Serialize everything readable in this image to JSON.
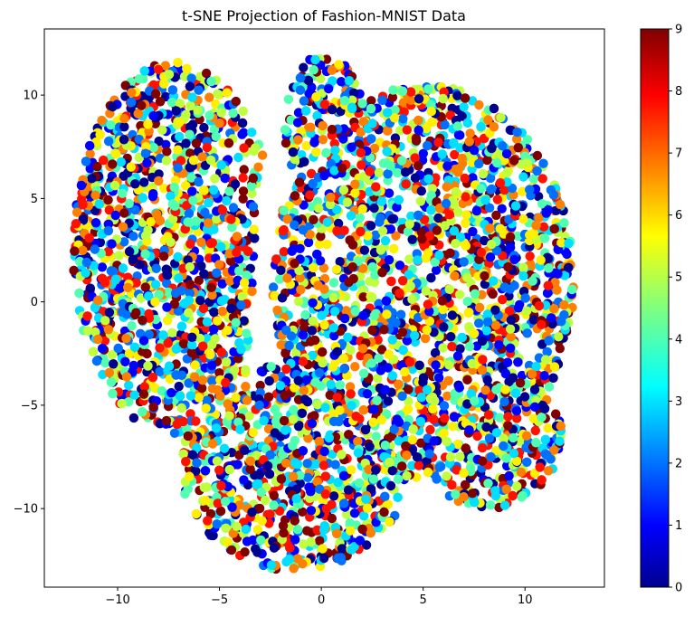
{
  "chart_data": {
    "type": "scatter",
    "title": "t-SNE Projection of Fashion-MNIST Data",
    "xlabel": "",
    "ylabel": "",
    "xlim": [
      -13.6,
      13.9
    ],
    "ylim": [
      -13.8,
      13.2
    ],
    "xticks": [
      -10,
      -5,
      0,
      5,
      10
    ],
    "yticks": [
      -10,
      -5,
      0,
      5,
      10
    ],
    "xtick_labels": [
      "−10",
      "−5",
      "0",
      "5",
      "10"
    ],
    "ytick_labels": [
      "−10",
      "−5",
      "0",
      "5",
      "10"
    ],
    "grid": false,
    "colormap": "jet",
    "color_range": [
      0,
      9
    ],
    "colorbar_ticks": [
      0,
      1,
      2,
      3,
      4,
      5,
      6,
      7,
      8,
      9
    ],
    "colorbar_labels": [
      "0",
      "1",
      "2",
      "3",
      "4",
      "5",
      "6",
      "7",
      "8",
      "9"
    ],
    "class_colors": [
      "#00008f",
      "#0000ff",
      "#0070ff",
      "#00dfff",
      "#50ffaf",
      "#bfff40",
      "#ffef00",
      "#ff8000",
      "#ff1000",
      "#800000"
    ],
    "regions": [
      {
        "name": "upper-left lobe",
        "x_range": [
          -12,
          -2
        ],
        "y_range": [
          -6.5,
          11.5
        ]
      },
      {
        "name": "upper-center lobe",
        "x_range": [
          -2,
          2
        ],
        "y_range": [
          -2,
          12
        ]
      },
      {
        "name": "right lobe",
        "x_range": [
          -3,
          12.5
        ],
        "y_range": [
          -10,
          10.5
        ]
      },
      {
        "name": "bottom lobe",
        "x_range": [
          -7,
          4.5
        ],
        "y_range": [
          -13,
          -2
        ]
      }
    ],
    "labels_mixed_across_regions": true
  }
}
